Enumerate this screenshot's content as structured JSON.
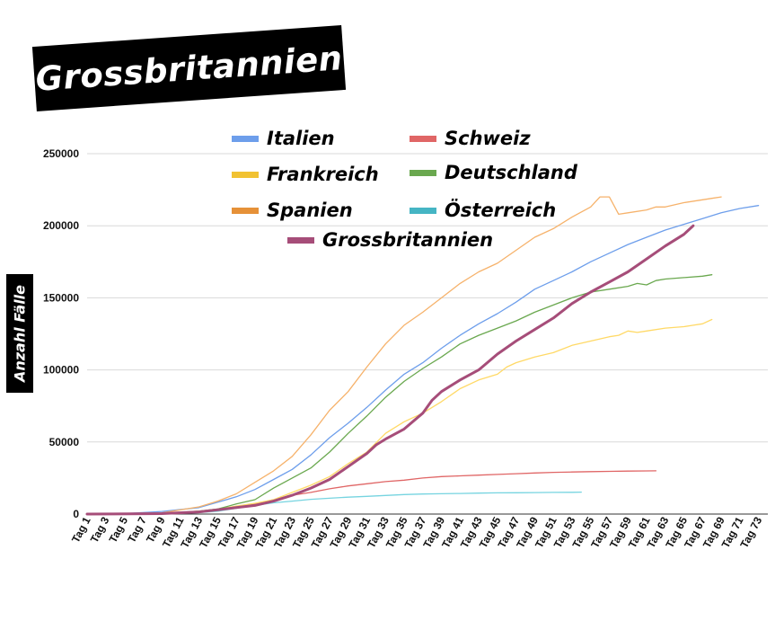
{
  "chart_data": {
    "type": "line",
    "title": "Grossbritannien",
    "xlabel": "",
    "ylabel": "Anzahl Fälle",
    "ylim": [
      0,
      250000
    ],
    "yticks": [
      0,
      50000,
      100000,
      150000,
      200000,
      250000
    ],
    "x_start": 1,
    "x_end": 74,
    "xtick_labels": [
      "Tag 1",
      "Tag 3",
      "Tag 5",
      "Tag 7",
      "Tag 9",
      "Tag 11",
      "Tag 13",
      "Tag 15",
      "Tag 17",
      "Tag 19",
      "Tag 21",
      "Tag 23",
      "Tag 25",
      "Tag 27",
      "Tag 29",
      "Tag 31",
      "Tag 33",
      "Tag 35",
      "Tag 37",
      "Tag 39",
      "Tag 41",
      "Tag 43",
      "Tag 45",
      "Tag 47",
      "Tag 49",
      "Tag 51",
      "Tag 53",
      "Tag 55",
      "Tag 57",
      "Tag 59",
      "Tag 61",
      "Tag 63",
      "Tag 65",
      "Tag 67",
      "Tag 69",
      "Tag 71",
      "Tag 73"
    ],
    "grid": true,
    "legend_position": "top",
    "series": [
      {
        "name": "Italien",
        "color": "#6d9eeb",
        "points": [
          [
            1,
            0
          ],
          [
            5,
            300
          ],
          [
            9,
            1800
          ],
          [
            13,
            4500
          ],
          [
            17,
            12000
          ],
          [
            19,
            17000
          ],
          [
            21,
            24000
          ],
          [
            23,
            31000
          ],
          [
            25,
            41000
          ],
          [
            27,
            53000
          ],
          [
            29,
            63000
          ],
          [
            31,
            74000
          ],
          [
            33,
            86000
          ],
          [
            35,
            97000
          ],
          [
            37,
            105000
          ],
          [
            39,
            115000
          ],
          [
            41,
            124000
          ],
          [
            43,
            132000
          ],
          [
            45,
            139000
          ],
          [
            47,
            147000
          ],
          [
            49,
            156000
          ],
          [
            51,
            162000
          ],
          [
            53,
            168000
          ],
          [
            55,
            175000
          ],
          [
            57,
            181000
          ],
          [
            59,
            187000
          ],
          [
            61,
            192000
          ],
          [
            63,
            197000
          ],
          [
            65,
            201000
          ],
          [
            67,
            205000
          ],
          [
            69,
            209000
          ],
          [
            71,
            212000
          ],
          [
            73,
            214000
          ]
        ]
      },
      {
        "name": "Schweiz",
        "color": "#e06666",
        "points": [
          [
            1,
            0
          ],
          [
            9,
            500
          ],
          [
            13,
            1500
          ],
          [
            15,
            2500
          ],
          [
            17,
            4500
          ],
          [
            19,
            7000
          ],
          [
            21,
            10000
          ],
          [
            23,
            13000
          ],
          [
            25,
            15000
          ],
          [
            27,
            17500
          ],
          [
            29,
            19500
          ],
          [
            31,
            21000
          ],
          [
            33,
            22500
          ],
          [
            35,
            23500
          ],
          [
            37,
            25000
          ],
          [
            39,
            26000
          ],
          [
            41,
            26500
          ],
          [
            43,
            27000
          ],
          [
            45,
            27500
          ],
          [
            47,
            28000
          ],
          [
            49,
            28500
          ],
          [
            51,
            28900
          ],
          [
            53,
            29200
          ],
          [
            55,
            29400
          ],
          [
            57,
            29600
          ],
          [
            59,
            29800
          ],
          [
            61,
            29900
          ],
          [
            62,
            30000
          ]
        ]
      },
      {
        "name": "Frankreich",
        "color": "#ffd966",
        "points": [
          [
            1,
            0
          ],
          [
            9,
            600
          ],
          [
            13,
            2000
          ],
          [
            15,
            3500
          ],
          [
            17,
            5500
          ],
          [
            19,
            7500
          ],
          [
            21,
            10000
          ],
          [
            23,
            15000
          ],
          [
            25,
            20000
          ],
          [
            27,
            26000
          ],
          [
            29,
            35000
          ],
          [
            31,
            43000
          ],
          [
            33,
            56000
          ],
          [
            35,
            64000
          ],
          [
            37,
            70000
          ],
          [
            39,
            78000
          ],
          [
            41,
            87000
          ],
          [
            43,
            93000
          ],
          [
            45,
            97000
          ],
          [
            46,
            102000
          ],
          [
            47,
            105000
          ],
          [
            49,
            109000
          ],
          [
            51,
            112000
          ],
          [
            53,
            117000
          ],
          [
            55,
            120000
          ],
          [
            57,
            123000
          ],
          [
            58,
            124000
          ],
          [
            59,
            127000
          ],
          [
            60,
            126000
          ],
          [
            61,
            127000
          ],
          [
            63,
            129000
          ],
          [
            65,
            130000
          ],
          [
            66,
            131000
          ],
          [
            67,
            132000
          ],
          [
            68,
            135000
          ]
        ]
      },
      {
        "name": "Deutschland",
        "color": "#6aa84f",
        "points": [
          [
            1,
            0
          ],
          [
            9,
            300
          ],
          [
            13,
            2000
          ],
          [
            15,
            3500
          ],
          [
            17,
            7000
          ],
          [
            19,
            10000
          ],
          [
            21,
            18000
          ],
          [
            23,
            25000
          ],
          [
            25,
            32000
          ],
          [
            27,
            43000
          ],
          [
            29,
            56000
          ],
          [
            31,
            68000
          ],
          [
            33,
            81000
          ],
          [
            35,
            92000
          ],
          [
            37,
            101000
          ],
          [
            39,
            109000
          ],
          [
            41,
            118000
          ],
          [
            43,
            124000
          ],
          [
            45,
            129000
          ],
          [
            47,
            134000
          ],
          [
            49,
            140000
          ],
          [
            51,
            145000
          ],
          [
            53,
            150000
          ],
          [
            55,
            154000
          ],
          [
            57,
            156000
          ],
          [
            59,
            158000
          ],
          [
            60,
            160000
          ],
          [
            61,
            159000
          ],
          [
            62,
            162000
          ],
          [
            63,
            163000
          ],
          [
            65,
            164000
          ],
          [
            67,
            165000
          ],
          [
            68,
            166000
          ]
        ]
      },
      {
        "name": "Spanien",
        "color": "#f6b26b",
        "points": [
          [
            1,
            0
          ],
          [
            9,
            800
          ],
          [
            13,
            5000
          ],
          [
            15,
            9000
          ],
          [
            17,
            14000
          ],
          [
            19,
            22000
          ],
          [
            21,
            30000
          ],
          [
            23,
            40000
          ],
          [
            25,
            55000
          ],
          [
            27,
            72000
          ],
          [
            29,
            85000
          ],
          [
            31,
            102000
          ],
          [
            33,
            118000
          ],
          [
            35,
            131000
          ],
          [
            37,
            140000
          ],
          [
            39,
            150000
          ],
          [
            41,
            160000
          ],
          [
            43,
            168000
          ],
          [
            45,
            174000
          ],
          [
            47,
            183000
          ],
          [
            49,
            192000
          ],
          [
            51,
            198000
          ],
          [
            53,
            206000
          ],
          [
            55,
            213000
          ],
          [
            56,
            220000
          ],
          [
            57,
            220000
          ],
          [
            58,
            208000
          ],
          [
            59,
            209000
          ],
          [
            61,
            211000
          ],
          [
            62,
            213000
          ],
          [
            63,
            213000
          ],
          [
            65,
            216000
          ],
          [
            67,
            218000
          ],
          [
            68,
            219000
          ],
          [
            69,
            220000
          ]
        ]
      },
      {
        "name": "Österreich",
        "color": "#76d4e0",
        "points": [
          [
            1,
            0
          ],
          [
            9,
            200
          ],
          [
            13,
            1000
          ],
          [
            15,
            2000
          ],
          [
            17,
            4000
          ],
          [
            19,
            6000
          ],
          [
            21,
            7800
          ],
          [
            23,
            9000
          ],
          [
            25,
            10200
          ],
          [
            27,
            11000
          ],
          [
            29,
            11700
          ],
          [
            31,
            12300
          ],
          [
            33,
            12900
          ],
          [
            35,
            13500
          ],
          [
            37,
            13900
          ],
          [
            39,
            14100
          ],
          [
            41,
            14300
          ],
          [
            43,
            14500
          ],
          [
            45,
            14700
          ],
          [
            47,
            14800
          ],
          [
            49,
            14900
          ],
          [
            51,
            15000
          ],
          [
            53,
            15100
          ],
          [
            54,
            15200
          ]
        ]
      },
      {
        "name": "Grossbritannien",
        "color": "#a64d79",
        "bold": true,
        "points": [
          [
            1,
            0
          ],
          [
            9,
            300
          ],
          [
            13,
            1500
          ],
          [
            15,
            3000
          ],
          [
            17,
            4500
          ],
          [
            19,
            6000
          ],
          [
            21,
            9000
          ],
          [
            23,
            13000
          ],
          [
            25,
            18000
          ],
          [
            27,
            24000
          ],
          [
            29,
            33000
          ],
          [
            31,
            42000
          ],
          [
            32,
            48000
          ],
          [
            33,
            52000
          ],
          [
            35,
            59000
          ],
          [
            37,
            70000
          ],
          [
            38,
            79000
          ],
          [
            39,
            85000
          ],
          [
            41,
            93000
          ],
          [
            43,
            100000
          ],
          [
            45,
            111000
          ],
          [
            47,
            120000
          ],
          [
            49,
            128000
          ],
          [
            51,
            136000
          ],
          [
            53,
            146000
          ],
          [
            55,
            154000
          ],
          [
            57,
            161000
          ],
          [
            59,
            168000
          ],
          [
            61,
            177000
          ],
          [
            63,
            186000
          ],
          [
            65,
            194000
          ],
          [
            66,
            200000
          ]
        ]
      }
    ]
  },
  "legend": [
    {
      "label": "Italien",
      "color": "#6d9eeb"
    },
    {
      "label": "Schweiz",
      "color": "#e06666"
    },
    {
      "label": "Frankreich",
      "color": "#f1c232"
    },
    {
      "label": "Deutschland",
      "color": "#6aa84f"
    },
    {
      "label": "Spanien",
      "color": "#e69138"
    },
    {
      "label": "Österreich",
      "color": "#45b5c4"
    },
    {
      "label": "Grossbritannien",
      "color": "#a64d79"
    }
  ]
}
